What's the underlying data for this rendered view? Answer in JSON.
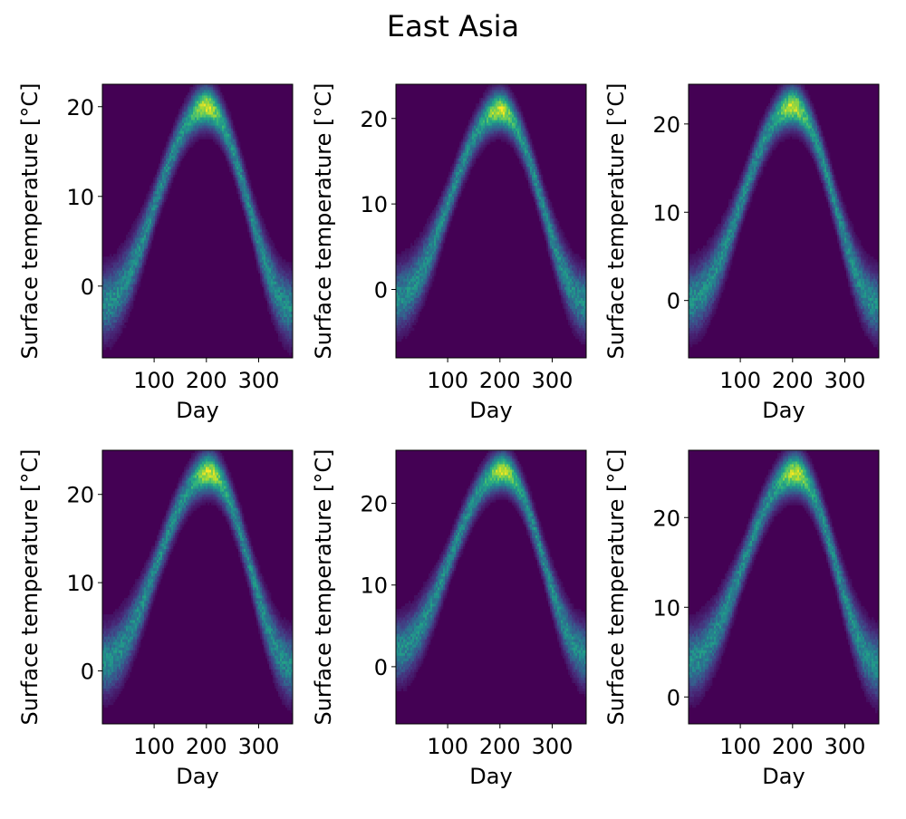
{
  "figure": {
    "title": "East Asia"
  },
  "colormap": {
    "name": "viridis",
    "background": "#440154"
  },
  "chart_data": [
    {
      "type": "heatmap",
      "xlabel": "Day",
      "ylabel": "Surface temperature [$^{\\circ}$C]",
      "xlim": [
        1,
        365
      ],
      "ylim": [
        -8,
        22.5
      ],
      "xticks": [
        100,
        200,
        300
      ],
      "yticks": [
        0,
        10,
        20
      ],
      "curve": {
        "min_temp": -2,
        "peak_temp": 20,
        "peak_day": 200,
        "end_temp": -2.5
      }
    },
    {
      "type": "heatmap",
      "xlabel": "Day",
      "ylabel": "Surface temperature [$^{\\circ}$C]",
      "xlim": [
        1,
        365
      ],
      "ylim": [
        -8,
        24
      ],
      "xticks": [
        100,
        200,
        300
      ],
      "yticks": [
        0,
        10,
        20
      ],
      "curve": {
        "min_temp": -1,
        "peak_temp": 21,
        "peak_day": 200,
        "end_temp": -1.5
      }
    },
    {
      "type": "heatmap",
      "xlabel": "Day",
      "ylabel": "Surface temperature [$^{\\circ}$C]",
      "xlim": [
        1,
        365
      ],
      "ylim": [
        -6.5,
        24.5
      ],
      "xticks": [
        100,
        200,
        300
      ],
      "yticks": [
        0,
        10,
        20
      ],
      "curve": {
        "min_temp": 0,
        "peak_temp": 22,
        "peak_day": 200,
        "end_temp": -0.5
      }
    },
    {
      "type": "heatmap",
      "xlabel": "Day",
      "ylabel": "Surface temperature [$^{\\circ}$C]",
      "xlim": [
        1,
        365
      ],
      "ylim": [
        -6,
        25
      ],
      "xticks": [
        100,
        200,
        300
      ],
      "yticks": [
        0,
        10,
        20
      ],
      "curve": {
        "min_temp": 1,
        "peak_temp": 22.5,
        "peak_day": 205,
        "end_temp": 0.5
      }
    },
    {
      "type": "heatmap",
      "xlabel": "Day",
      "ylabel": "Surface temperature [$^{\\circ}$C]",
      "xlim": [
        1,
        365
      ],
      "ylim": [
        -7,
        26.5
      ],
      "xticks": [
        100,
        200,
        300
      ],
      "yticks": [
        0,
        10,
        20
      ],
      "curve": {
        "min_temp": 2,
        "peak_temp": 24,
        "peak_day": 205,
        "end_temp": 1.5
      }
    },
    {
      "type": "heatmap",
      "xlabel": "Day",
      "ylabel": "Surface temperature [$^{\\circ}$C]",
      "xlim": [
        1,
        365
      ],
      "ylim": [
        -3,
        27.5
      ],
      "xticks": [
        100,
        200,
        300
      ],
      "yticks": [
        0,
        10,
        20
      ],
      "curve": {
        "min_temp": 4,
        "peak_temp": 25,
        "peak_day": 205,
        "end_temp": 3.5
      }
    }
  ]
}
